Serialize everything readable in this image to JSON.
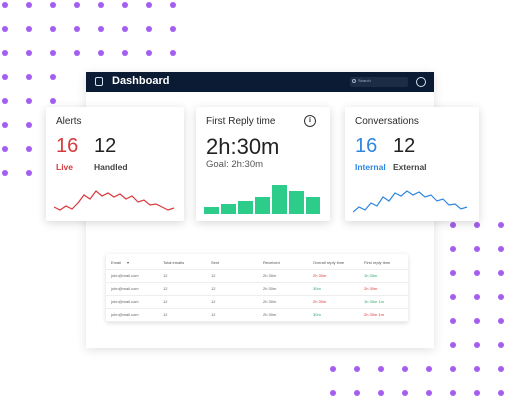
{
  "window": {
    "title": "Dashboard",
    "search_placeholder": "Search"
  },
  "alerts": {
    "title": "Alerts",
    "live_count": "16",
    "live_label": "Live",
    "handled_count": "12",
    "handled_label": "Handled",
    "color": "#d8393c"
  },
  "first_reply": {
    "title": "First Reply time",
    "value": "2h:30m",
    "goal": "Goal: 2h:30m",
    "color": "#2ecc8a"
  },
  "conversations": {
    "title": "Conversations",
    "internal_count": "16",
    "internal_label": "Internal",
    "external_count": "12",
    "external_label": "External",
    "color": "#2f86e0"
  },
  "table": {
    "headers": [
      "Email",
      "Total emails",
      "Sent",
      "Received",
      "Overall reply time",
      "First reply time"
    ],
    "rows": [
      [
        "john@mail.com",
        "12",
        "12",
        "2h 30m",
        "2h 30m",
        "1h 30m"
      ],
      [
        "john@mail.com",
        "12",
        "12",
        "2h 30m",
        "30m",
        "2h 30m"
      ],
      [
        "john@mail.com",
        "12",
        "12",
        "2h 30m",
        "2h 30m",
        "1h 30m 1m"
      ],
      [
        "john@mail.com",
        "12",
        "12",
        "2h 30m",
        "30m",
        "2h 30m 1m"
      ]
    ]
  }
}
